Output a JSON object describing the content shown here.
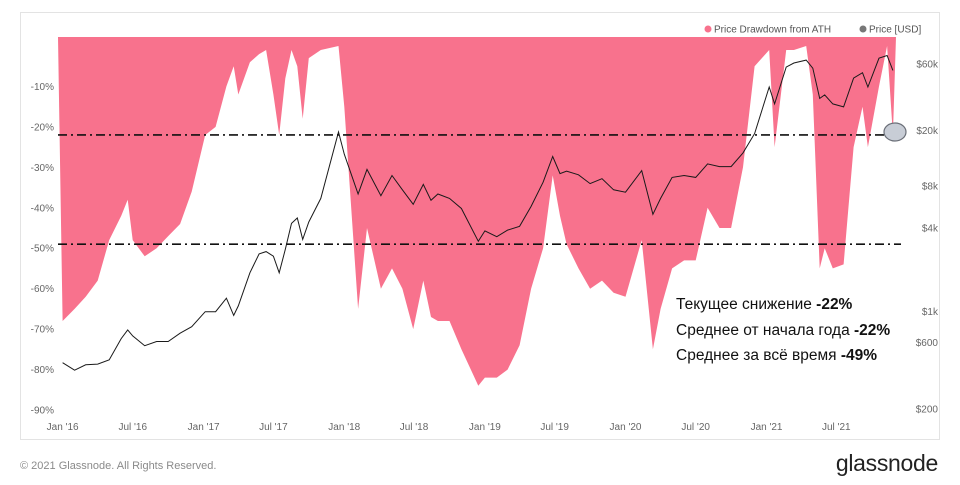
{
  "chart_data": {
    "type": "area",
    "title": "",
    "legend": {
      "placement": "top-right",
      "entries": [
        {
          "name": "Price Drawdown from ATH",
          "color": "#f8728d"
        },
        {
          "name": "Price [USD]",
          "color": "#777777"
        }
      ]
    },
    "x_ticks": [
      "Jan '16",
      "Jul '16",
      "Jan '17",
      "Jul '17",
      "Jan '18",
      "Jul '18",
      "Jan '19",
      "Jul '19",
      "Jan '20",
      "Jul '20",
      "Jan '21",
      "Jul '21"
    ],
    "y_left": {
      "label": "",
      "ticks": [
        "-10%",
        "-20%",
        "-30%",
        "-40%",
        "-50%",
        "-60%",
        "-70%",
        "-80%",
        "-90%"
      ],
      "range": [
        -90,
        0
      ]
    },
    "y_right": {
      "label": "",
      "scale": "log",
      "ticks": [
        "$60k",
        "$20k",
        "$8k",
        "$4k",
        "$1k",
        "$600",
        "$200"
      ],
      "range": [
        200,
        100000
      ]
    },
    "grid": false,
    "reference_lines": [
      {
        "y": -22,
        "style": "dash-dot"
      },
      {
        "y": -49,
        "style": "dash-dot"
      }
    ],
    "series": [
      {
        "name": "Price Drawdown from ATH",
        "unit": "percent",
        "x": [
          "2016-01-01",
          "2016-02-01",
          "2016-03-01",
          "2016-04-01",
          "2016-05-01",
          "2016-06-01",
          "2016-06-18",
          "2016-07-01",
          "2016-08-01",
          "2016-09-01",
          "2016-10-01",
          "2016-11-01",
          "2016-12-01",
          "2017-01-05",
          "2017-02-01",
          "2017-03-01",
          "2017-03-20",
          "2017-04-01",
          "2017-05-01",
          "2017-05-25",
          "2017-06-12",
          "2017-07-01",
          "2017-07-16",
          "2017-08-01",
          "2017-08-17",
          "2017-09-01",
          "2017-09-15",
          "2017-10-01",
          "2017-11-01",
          "2017-12-17",
          "2018-01-01",
          "2018-02-06",
          "2018-03-01",
          "2018-04-06",
          "2018-05-05",
          "2018-06-01",
          "2018-06-29",
          "2018-07-25",
          "2018-08-14",
          "2018-09-01",
          "2018-10-01",
          "2018-11-01",
          "2018-12-15",
          "2019-01-01",
          "2019-02-01",
          "2019-03-01",
          "2019-04-01",
          "2019-05-01",
          "2019-06-01",
          "2019-06-26",
          "2019-07-15",
          "2019-08-01",
          "2019-09-01",
          "2019-10-01",
          "2019-11-01",
          "2019-12-01",
          "2020-01-01",
          "2020-02-12",
          "2020-03-12",
          "2020-04-01",
          "2020-05-01",
          "2020-06-01",
          "2020-07-01",
          "2020-08-01",
          "2020-09-01",
          "2020-10-01",
          "2020-11-01",
          "2020-12-01",
          "2021-01-08",
          "2021-01-22",
          "2021-02-21",
          "2021-03-13",
          "2021-04-14",
          "2021-05-01",
          "2021-05-19",
          "2021-06-01",
          "2021-06-22",
          "2021-07-20",
          "2021-08-15",
          "2021-09-07",
          "2021-09-21",
          "2021-10-20",
          "2021-11-10",
          "2021-11-25"
        ],
        "y": [
          -68,
          -65,
          -62,
          -58,
          -48,
          -42,
          -38,
          -48,
          -52,
          -50,
          -47,
          -44,
          -36,
          -22,
          -20,
          -10,
          -5,
          -12,
          -4,
          -2,
          -1,
          -12,
          -22,
          -8,
          -1,
          -5,
          -18,
          -3,
          -1,
          0,
          -15,
          -65,
          -45,
          -60,
          -55,
          -60,
          -70,
          -58,
          -67,
          -68,
          -68,
          -75,
          -84,
          -82,
          -82,
          -80,
          -74,
          -60,
          -50,
          -32,
          -42,
          -49,
          -55,
          -60,
          -58,
          -61,
          -62,
          -48,
          -75,
          -65,
          -55,
          -53,
          -53,
          -40,
          -45,
          -45,
          -30,
          -5,
          -1,
          -25,
          -1,
          -1,
          0,
          -12,
          -55,
          -50,
          -55,
          -54,
          -25,
          -15,
          -25,
          -10,
          0,
          -22
        ]
      },
      {
        "name": "Price [USD]",
        "unit": "USD",
        "x": [
          "2016-01-01",
          "2016-02-01",
          "2016-03-01",
          "2016-04-01",
          "2016-05-01",
          "2016-06-01",
          "2016-06-18",
          "2016-07-01",
          "2016-08-01",
          "2016-09-01",
          "2016-10-01",
          "2016-11-01",
          "2016-12-01",
          "2017-01-05",
          "2017-02-01",
          "2017-03-01",
          "2017-03-20",
          "2017-04-01",
          "2017-05-01",
          "2017-05-25",
          "2017-06-12",
          "2017-07-01",
          "2017-07-16",
          "2017-08-01",
          "2017-08-17",
          "2017-09-01",
          "2017-09-15",
          "2017-10-01",
          "2017-11-01",
          "2017-12-17",
          "2018-01-01",
          "2018-02-06",
          "2018-03-01",
          "2018-04-06",
          "2018-05-05",
          "2018-06-01",
          "2018-06-29",
          "2018-07-25",
          "2018-08-14",
          "2018-09-01",
          "2018-10-01",
          "2018-11-01",
          "2018-12-15",
          "2019-01-01",
          "2019-02-01",
          "2019-03-01",
          "2019-04-01",
          "2019-05-01",
          "2019-06-01",
          "2019-06-26",
          "2019-07-15",
          "2019-08-01",
          "2019-09-01",
          "2019-10-01",
          "2019-11-01",
          "2019-12-01",
          "2020-01-01",
          "2020-02-12",
          "2020-03-12",
          "2020-04-01",
          "2020-05-01",
          "2020-06-01",
          "2020-07-01",
          "2020-08-01",
          "2020-09-01",
          "2020-10-01",
          "2020-11-01",
          "2020-12-01",
          "2021-01-08",
          "2021-01-22",
          "2021-02-21",
          "2021-03-13",
          "2021-04-14",
          "2021-05-01",
          "2021-05-19",
          "2021-06-01",
          "2021-06-22",
          "2021-07-20",
          "2021-08-15",
          "2021-09-07",
          "2021-09-21",
          "2021-10-20",
          "2021-11-10",
          "2021-11-25"
        ],
        "y": [
          430,
          380,
          415,
          420,
          450,
          640,
          740,
          670,
          570,
          610,
          610,
          700,
          780,
          1000,
          1000,
          1250,
          940,
          1100,
          1900,
          2600,
          2700,
          2500,
          1900,
          2800,
          4300,
          4700,
          3300,
          4400,
          6500,
          19500,
          13500,
          7000,
          10500,
          6800,
          9500,
          7500,
          5900,
          8200,
          6300,
          7000,
          6500,
          5500,
          3200,
          3800,
          3450,
          3850,
          4100,
          5700,
          8500,
          13000,
          9800,
          10200,
          9600,
          8300,
          9000,
          7500,
          7200,
          10300,
          5000,
          6500,
          9200,
          9500,
          9200,
          11500,
          11000,
          11000,
          13800,
          19000,
          41000,
          31000,
          57000,
          61000,
          64000,
          56000,
          34000,
          36000,
          31000,
          29500,
          47500,
          52000,
          41000,
          66000,
          69000,
          54000
        ]
      }
    ],
    "annotations": [
      {
        "text": "Текущее снижение ",
        "value": "-22%"
      },
      {
        "text": "Среднее от начала года ",
        "value": "-22%"
      },
      {
        "text": "Среднее за всё время ",
        "value": "-49%"
      }
    ],
    "colors": {
      "drawdown": "#f8728d",
      "price": "#1a1a1a",
      "marker": "#c8cdd6"
    }
  },
  "footer": {
    "copyright": "© 2021 Glassnode. All Rights Reserved.",
    "logo": "glassnode"
  }
}
